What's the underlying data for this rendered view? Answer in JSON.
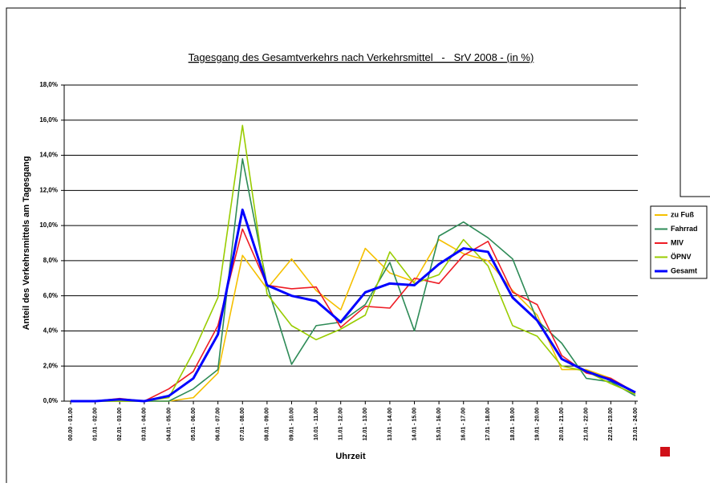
{
  "chart_data": {
    "type": "line",
    "title": "Tagesgang des Gesamtverkehrs nach Verkehrsmittel   -   SrV 2008 - (in %)",
    "x_label": "Uhrzeit",
    "y_label": "Anteil des Verkehrsmittels am Tagesgang",
    "categories": [
      "00.00 - 01.00",
      "01.01 - 02.00",
      "02.01 - 03.00",
      "03.01 - 04.00",
      "04.01 - 05.00",
      "05.01 - 06.00",
      "06.01 - 07.00",
      "07.01 - 08.00",
      "08.01 - 09.00",
      "09.01 - 10.00",
      "10.01 - 11.00",
      "11.01 - 12.00",
      "12.01 - 13.00",
      "13.01 - 14.00",
      "14.01 - 15.00",
      "15.01 - 16.00",
      "16.01 - 17.00",
      "17.01 - 18.00",
      "18.01 - 19.00",
      "19.01 - 20.00",
      "20.01 - 21.00",
      "21.01 - 22.00",
      "22.01 - 23.00",
      "23.01 - 24.00"
    ],
    "series": [
      {
        "name": "zu Fuß",
        "color": "#f5c000",
        "values": [
          0,
          0,
          0,
          0,
          0,
          0.2,
          1.6,
          8.3,
          6.4,
          8.1,
          6.3,
          5.2,
          8.7,
          7.3,
          6.8,
          9.2,
          8.4,
          8.0,
          6.3,
          4.9,
          1.8,
          1.8,
          1.3,
          0.4
        ]
      },
      {
        "name": "Fahrrad",
        "color": "#2e8b57",
        "values": [
          0,
          0,
          0,
          0,
          0,
          0.7,
          1.8,
          13.8,
          6.6,
          2.1,
          4.3,
          4.5,
          5.5,
          7.9,
          4.0,
          9.4,
          10.2,
          9.3,
          8.1,
          4.6,
          3.3,
          1.3,
          1.1,
          0.3
        ]
      },
      {
        "name": "MIV",
        "color": "#ee1c25",
        "values": [
          0,
          0,
          0.15,
          0,
          0.7,
          1.7,
          4.3,
          9.8,
          6.6,
          6.4,
          6.5,
          4.2,
          5.4,
          5.3,
          7.0,
          6.7,
          8.3,
          9.1,
          6.2,
          5.5,
          2.6,
          1.6,
          1.3,
          0.5
        ]
      },
      {
        "name": "ÖPNV",
        "color": "#99cc00",
        "values": [
          0,
          0,
          0,
          0,
          0.2,
          2.8,
          5.9,
          15.7,
          6.1,
          4.3,
          3.5,
          4.1,
          4.9,
          8.5,
          6.7,
          7.2,
          9.2,
          7.7,
          4.3,
          3.7,
          2.0,
          1.7,
          1.0,
          0.4
        ]
      },
      {
        "name": "Gesamt",
        "color": "#0000ff",
        "values": [
          0,
          0,
          0.1,
          0,
          0.3,
          1.3,
          3.8,
          10.9,
          6.6,
          6.0,
          5.7,
          4.5,
          6.2,
          6.7,
          6.6,
          7.8,
          8.7,
          8.5,
          5.9,
          4.6,
          2.4,
          1.7,
          1.2,
          0.5
        ]
      }
    ],
    "ylim": [
      0,
      18
    ],
    "yticks": [
      {
        "value": 0,
        "label": "0,0%"
      },
      {
        "value": 2,
        "label": "2,0%"
      },
      {
        "value": 4,
        "label": "4,0%"
      },
      {
        "value": 6,
        "label": "6,0%"
      },
      {
        "value": 8,
        "label": "8,0%"
      },
      {
        "value": 10,
        "label": "10,0%"
      },
      {
        "value": 12,
        "label": "12,0%"
      },
      {
        "value": 14,
        "label": "14,0%"
      },
      {
        "value": 16,
        "label": "16,0%"
      },
      {
        "value": 18,
        "label": "18,0%"
      }
    ],
    "grid": true,
    "legend": "right"
  }
}
